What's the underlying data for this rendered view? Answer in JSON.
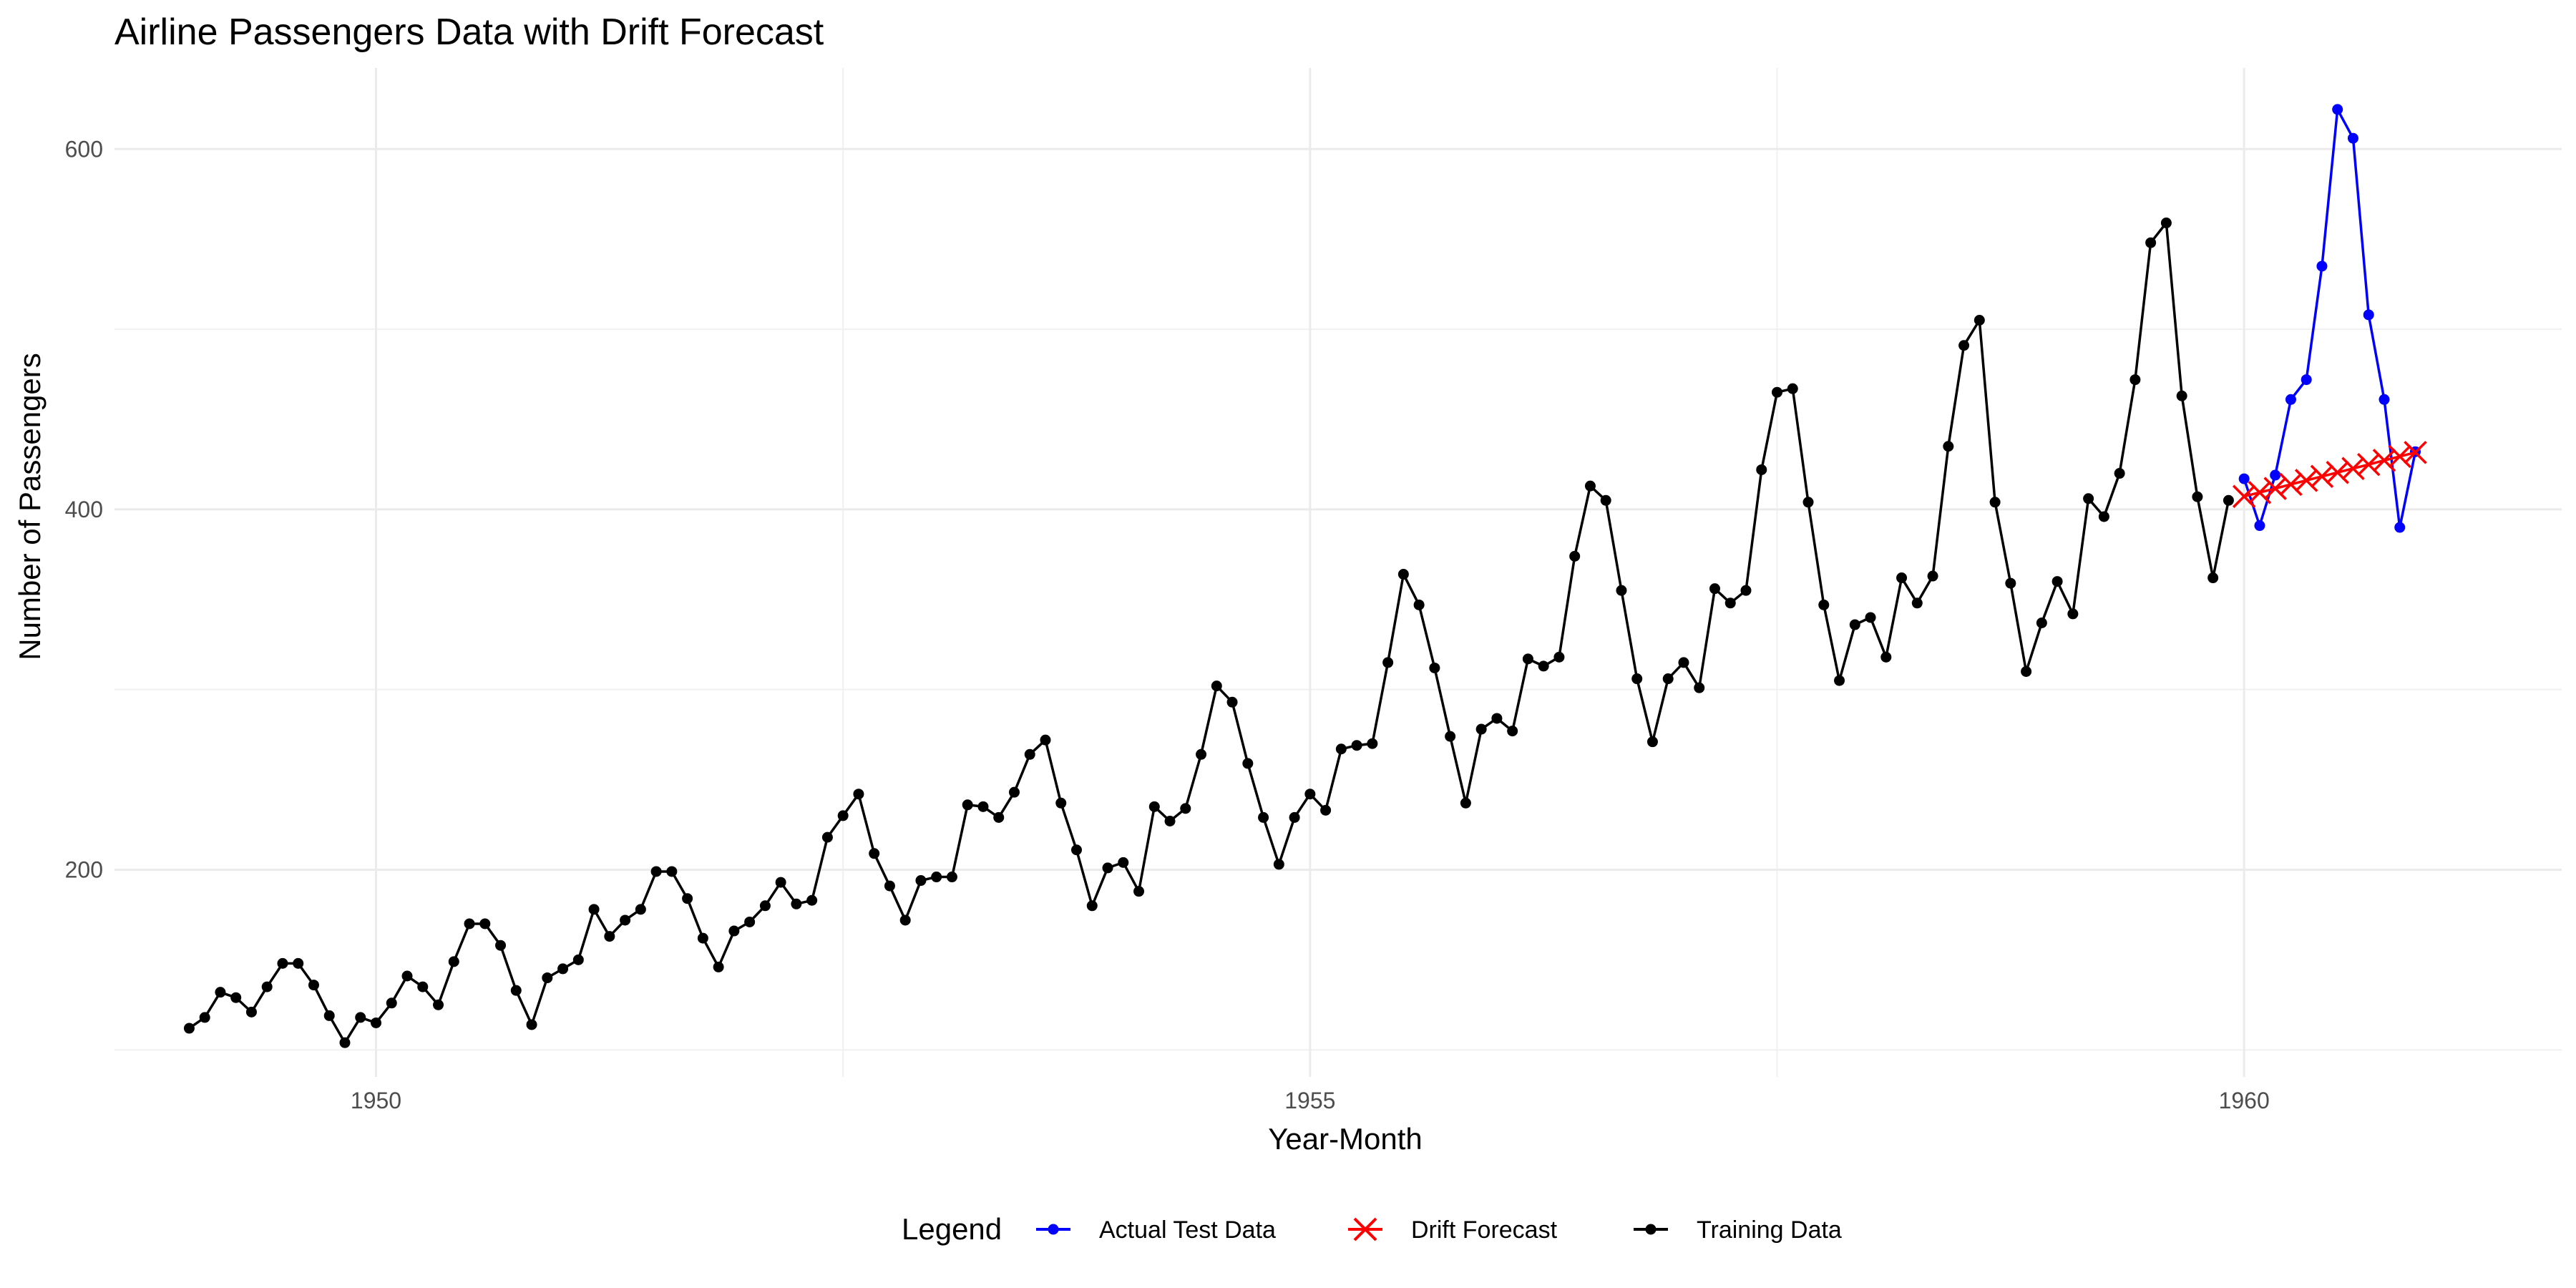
{
  "chart_data": {
    "type": "line",
    "title": "Airline Passengers Data with Drift Forecast",
    "xlabel": "Year-Month",
    "ylabel": "Number of Passengers",
    "xlim": [
      1948.6,
      1961.7
    ],
    "ylim": [
      85,
      645
    ],
    "x_ticks": [
      1950,
      1955,
      1960
    ],
    "x_tick_labels": [
      "1950",
      "1955",
      "1960"
    ],
    "y_ticks": [
      200,
      400,
      600
    ],
    "y_tick_labels": [
      "200",
      "400",
      "600"
    ],
    "grid": true,
    "legend": {
      "title": "Legend",
      "position": "bottom",
      "entries": [
        "Actual Test Data",
        "Drift Forecast",
        "Training Data"
      ]
    },
    "series": [
      {
        "name": "Training Data",
        "color": "#000000",
        "marker": "circle",
        "x_start": 1949.0,
        "x_step": 0.08333333,
        "values": [
          112,
          118,
          132,
          129,
          121,
          135,
          148,
          148,
          136,
          119,
          104,
          118,
          115,
          126,
          141,
          135,
          125,
          149,
          170,
          170,
          158,
          133,
          114,
          140,
          145,
          150,
          178,
          163,
          172,
          178,
          199,
          199,
          184,
          162,
          146,
          166,
          171,
          180,
          193,
          181,
          183,
          218,
          230,
          242,
          209,
          191,
          172,
          194,
          196,
          196,
          236,
          235,
          229,
          243,
          264,
          272,
          237,
          211,
          180,
          201,
          204,
          188,
          235,
          227,
          234,
          264,
          302,
          293,
          259,
          229,
          203,
          229,
          242,
          233,
          267,
          269,
          270,
          315,
          364,
          347,
          312,
          274,
          237,
          278,
          284,
          277,
          317,
          313,
          318,
          374,
          413,
          405,
          355,
          306,
          271,
          306,
          315,
          301,
          356,
          348,
          355,
          422,
          465,
          467,
          404,
          347,
          305,
          336,
          340,
          318,
          362,
          348,
          363,
          435,
          491,
          505,
          404,
          359,
          310,
          337,
          360,
          342,
          406,
          396,
          420,
          472,
          548,
          559,
          463,
          407,
          362,
          405
        ]
      },
      {
        "name": "Actual Test Data",
        "color": "#0000ff",
        "marker": "circle",
        "x_start": 1960.0,
        "x_step": 0.08333333,
        "values": [
          417,
          391,
          419,
          461,
          472,
          535,
          622,
          606,
          508,
          461,
          390,
          432
        ]
      },
      {
        "name": "Drift Forecast",
        "color": "#ff0000",
        "marker": "x",
        "x_start": 1960.0,
        "x_step": 0.08333333,
        "values": [
          407.2,
          409.4,
          411.6,
          413.9,
          416.1,
          418.3,
          420.5,
          422.7,
          424.9,
          427.2,
          429.4,
          431.6
        ]
      }
    ]
  }
}
